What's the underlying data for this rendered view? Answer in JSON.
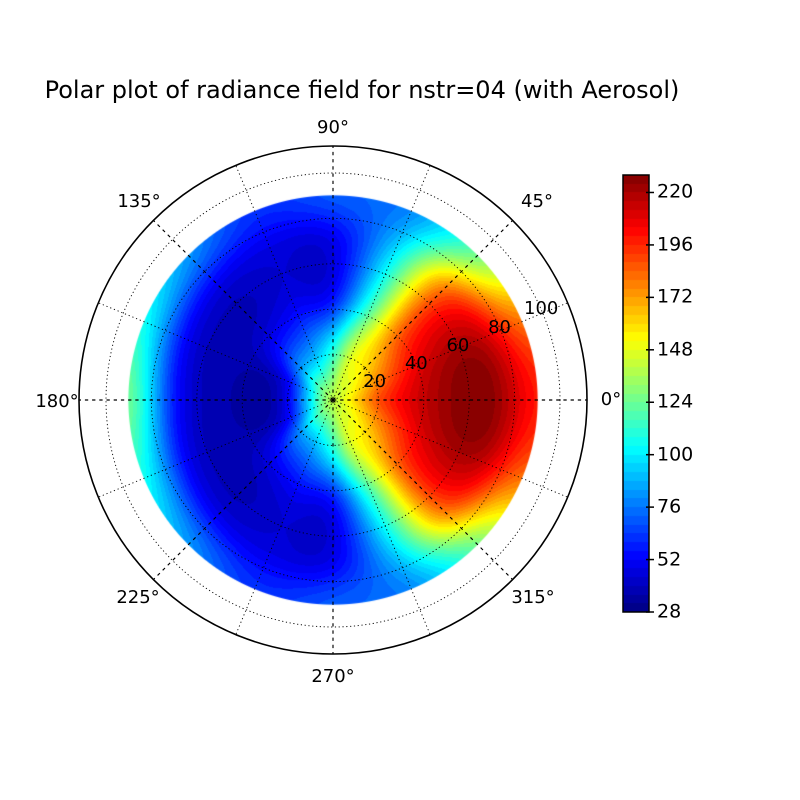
{
  "title": "Polar plot of radiance field for nstr=04 (with Aerosol)",
  "colors": {
    "background": "#ffffff",
    "text": "#000000",
    "grid": "#000000",
    "colormap_low": "#000080",
    "colormap_high": "#800000"
  },
  "chart_data": {
    "type": "heatmap",
    "projection": "polar",
    "title": "Polar plot of radiance field for nstr=04 (with Aerosol)",
    "colormap": "jet",
    "grid_style": "dotted",
    "angle_ticks_deg": [
      0,
      45,
      90,
      135,
      180,
      225,
      270,
      315
    ],
    "angle_tick_labels": [
      "0°",
      "45°",
      "90°",
      "135°",
      "180°",
      "225°",
      "270°",
      "315°"
    ],
    "minor_angle_step_deg": 22.5,
    "radial_ticks": [
      20,
      40,
      60,
      80,
      100
    ],
    "radial_tick_labels": [
      "20",
      "40",
      "60",
      "80",
      "100"
    ],
    "radial_label_angle_deg": 23.5,
    "r_data_max": 90,
    "r_axis_max": 111.4,
    "colorbar": {
      "vmin": 28,
      "vmax": 228,
      "level_step": 4,
      "ticks": [
        28,
        52,
        76,
        100,
        124,
        148,
        172,
        196,
        220
      ],
      "tick_labels": [
        "28",
        "52",
        "76",
        "100",
        "124",
        "148",
        "172",
        "196",
        "220"
      ]
    },
    "field": {
      "description": "Radiance values read from the contour colors, sampled on a polar grid (rows = azimuth, cols = radius).",
      "radius_nodes": [
        0,
        22.5,
        45,
        67.5,
        90
      ],
      "azimuth_nodes_deg": [
        0,
        22.5,
        45,
        67.5,
        90,
        112.5,
        135,
        157.5,
        180,
        202.5,
        225,
        247.5,
        270,
        292.5,
        315,
        337.5
      ],
      "values": [
        [
          140,
          192,
          219,
          227,
          199
        ],
        [
          140,
          180,
          212,
          218,
          181
        ],
        [
          140,
          162,
          186,
          182,
          126
        ],
        [
          140,
          145,
          116,
          100,
          80
        ],
        [
          140,
          108,
          56,
          48,
          70
        ],
        [
          140,
          86,
          50,
          45,
          62
        ],
        [
          140,
          76,
          42,
          44,
          82
        ],
        [
          140,
          50,
          37,
          48,
          105
        ],
        [
          140,
          44,
          36,
          52,
          124
        ],
        [
          140,
          50,
          37,
          48,
          105
        ],
        [
          140,
          76,
          42,
          44,
          82
        ],
        [
          140,
          86,
          50,
          45,
          62
        ],
        [
          140,
          108,
          56,
          48,
          70
        ],
        [
          140,
          145,
          116,
          100,
          80
        ],
        [
          140,
          162,
          186,
          182,
          126
        ],
        [
          140,
          180,
          212,
          218,
          181
        ]
      ],
      "max_value": 227,
      "min_value": 33,
      "peak_location": {
        "azimuth_deg": 0,
        "radius": 62
      },
      "min_location": {
        "azimuth_deg": 180,
        "radius": 34
      }
    }
  }
}
